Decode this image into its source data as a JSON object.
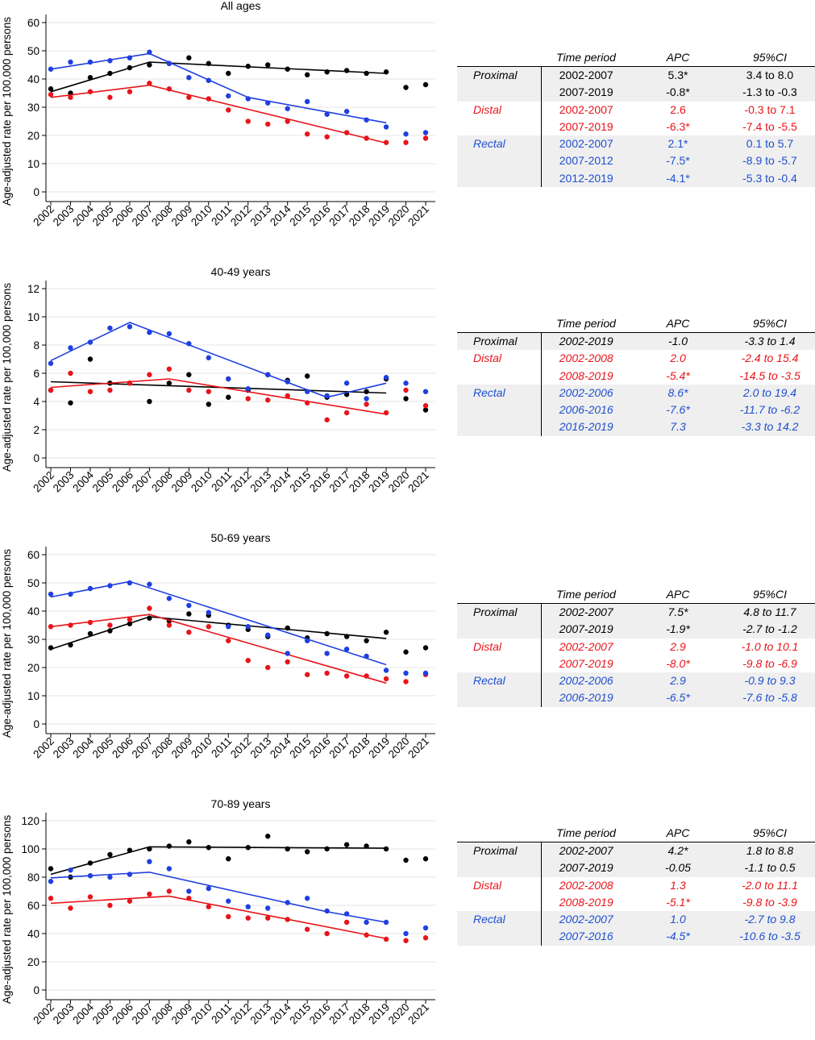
{
  "colors": {
    "proximal": "#000000",
    "distal": "#e8141a",
    "rectal": "#1f3fe0",
    "table_proximal": "#000000",
    "table_distal": "#e8141a",
    "table_rectal": "#1f4fd0",
    "shade": "#efefef",
    "grid": "#e6e6e6"
  },
  "ylabel": "Age-adjusted rate per 100,000 persons",
  "table_headers": {
    "time": "Time period",
    "apc": "APC",
    "ci": "95%CI"
  },
  "chart_data": [
    {
      "type": "scatter",
      "title": "All ages",
      "ylabel": "Age-adjusted rate per 100,000 persons",
      "x": [
        2002,
        2003,
        2004,
        2005,
        2006,
        2007,
        2008,
        2009,
        2010,
        2011,
        2012,
        2013,
        2014,
        2015,
        2016,
        2017,
        2018,
        2019,
        2020,
        2021
      ],
      "ylim": [
        0,
        60
      ],
      "yticks": [
        0,
        10,
        20,
        30,
        40,
        50,
        60
      ],
      "grid": true,
      "series": [
        {
          "name": "Proximal",
          "color": "#000000",
          "values": [
            36.5,
            35.0,
            40.5,
            42.0,
            44.0,
            45.0,
            45.5,
            47.5,
            45.5,
            42.0,
            44.5,
            45.0,
            43.5,
            41.5,
            42.5,
            43.0,
            42.0,
            42.5,
            37.0,
            38.0
          ],
          "fit": [
            [
              2002,
              35.5
            ],
            [
              2007,
              46.0
            ],
            [
              2019,
              42.0
            ]
          ]
        },
        {
          "name": "Distal",
          "color": "#e8141a",
          "values": [
            34.5,
            33.5,
            35.5,
            33.5,
            35.5,
            38.5,
            36.5,
            33.5,
            33.0,
            29.0,
            25.0,
            24.0,
            25.0,
            20.5,
            19.5,
            21.0,
            19.0,
            17.5,
            17.5,
            19.0
          ],
          "fit": [
            [
              2002,
              33.5
            ],
            [
              2007,
              37.8
            ],
            [
              2019,
              17.3
            ]
          ]
        },
        {
          "name": "Rectal",
          "color": "#1f3fe0",
          "values": [
            43.5,
            46.0,
            46.0,
            46.5,
            47.5,
            49.5,
            45.5,
            40.5,
            39.5,
            34.0,
            33.0,
            31.5,
            29.5,
            32.0,
            27.5,
            28.5,
            25.5,
            23.0,
            20.5,
            21.0
          ],
          "fit": [
            [
              2002,
              43.5
            ],
            [
              2007,
              49.0
            ],
            [
              2012,
              33.5
            ],
            [
              2019,
              24.5
            ]
          ]
        }
      ]
    },
    {
      "type": "scatter",
      "title": "40-49 years",
      "ylabel": "Age-adjusted rate per 100,000 persons",
      "x": [
        2002,
        2003,
        2004,
        2005,
        2006,
        2007,
        2008,
        2009,
        2010,
        2011,
        2012,
        2013,
        2014,
        2015,
        2016,
        2017,
        2018,
        2019,
        2020,
        2021
      ],
      "ylim": [
        0,
        12
      ],
      "yticks": [
        0,
        2,
        4,
        6,
        8,
        10,
        12
      ],
      "grid": true,
      "series": [
        {
          "name": "Proximal",
          "color": "#000000",
          "values": [
            4.8,
            3.9,
            7.0,
            5.3,
            5.3,
            4.0,
            5.3,
            5.9,
            3.8,
            4.3,
            4.8,
            5.9,
            5.5,
            5.8,
            4.3,
            4.5,
            4.7,
            5.6,
            4.2,
            3.4
          ],
          "fit": [
            [
              2002,
              5.4
            ],
            [
              2019,
              4.6
            ]
          ]
        },
        {
          "name": "Distal",
          "color": "#e8141a",
          "values": [
            4.8,
            6.0,
            4.7,
            4.8,
            5.3,
            5.9,
            6.3,
            4.8,
            4.7,
            5.6,
            4.2,
            4.1,
            4.4,
            3.9,
            2.7,
            3.2,
            3.8,
            3.2,
            4.8,
            3.7
          ],
          "fit": [
            [
              2002,
              5.0
            ],
            [
              2008,
              5.6
            ],
            [
              2019,
              3.1
            ]
          ]
        },
        {
          "name": "Rectal",
          "color": "#1f3fe0",
          "values": [
            6.7,
            7.8,
            8.2,
            9.2,
            9.3,
            8.9,
            8.8,
            8.1,
            7.1,
            5.6,
            4.9,
            5.9,
            5.4,
            4.7,
            4.4,
            5.3,
            4.2,
            5.7,
            5.3,
            4.7
          ],
          "fit": [
            [
              2002,
              6.9
            ],
            [
              2006,
              9.6
            ],
            [
              2016,
              4.3
            ],
            [
              2019,
              5.3
            ]
          ]
        }
      ]
    },
    {
      "type": "scatter",
      "title": "50-69 years",
      "ylabel": "Age-adjusted rate per 100,000 persons",
      "x": [
        2002,
        2003,
        2004,
        2005,
        2006,
        2007,
        2008,
        2009,
        2010,
        2011,
        2012,
        2013,
        2014,
        2015,
        2016,
        2017,
        2018,
        2019,
        2020,
        2021
      ],
      "ylim": [
        0,
        60
      ],
      "yticks": [
        0,
        10,
        20,
        30,
        40,
        50,
        60
      ],
      "grid": true,
      "series": [
        {
          "name": "Proximal",
          "color": "#000000",
          "values": [
            27.0,
            28.0,
            32.0,
            33.0,
            35.5,
            37.5,
            36.5,
            39.0,
            38.5,
            35.0,
            33.5,
            31.0,
            34.0,
            30.5,
            32.0,
            31.0,
            29.5,
            32.5,
            25.5,
            27.0
          ],
          "fit": [
            [
              2002,
              26.5
            ],
            [
              2007,
              38.0
            ],
            [
              2019,
              30.3
            ]
          ]
        },
        {
          "name": "Distal",
          "color": "#e8141a",
          "values": [
            34.5,
            35.0,
            36.0,
            35.0,
            37.0,
            41.0,
            35.0,
            32.5,
            34.5,
            29.5,
            22.5,
            20.0,
            22.0,
            17.5,
            18.0,
            17.0,
            17.0,
            16.0,
            15.0,
            17.5
          ],
          "fit": [
            [
              2002,
              34.5
            ],
            [
              2007,
              38.8
            ],
            [
              2019,
              14.5
            ]
          ]
        },
        {
          "name": "Rectal",
          "color": "#1f3fe0",
          "values": [
            46.0,
            46.0,
            48.0,
            49.0,
            50.0,
            49.5,
            44.5,
            42.0,
            39.5,
            34.5,
            34.5,
            31.5,
            25.0,
            29.5,
            25.0,
            26.5,
            24.0,
            19.0,
            18.0,
            18.0
          ],
          "fit": [
            [
              2002,
              45.0
            ],
            [
              2006,
              50.5
            ],
            [
              2019,
              21.0
            ]
          ]
        }
      ]
    },
    {
      "type": "scatter",
      "title": "70-89 years",
      "ylabel": "Age-adjusted rate per 100,000 persons",
      "x": [
        2002,
        2003,
        2004,
        2005,
        2006,
        2007,
        2008,
        2009,
        2010,
        2011,
        2012,
        2013,
        2014,
        2015,
        2016,
        2017,
        2018,
        2019,
        2020,
        2021
      ],
      "ylim": [
        0,
        120
      ],
      "yticks": [
        0,
        20,
        40,
        60,
        80,
        100,
        120
      ],
      "grid": true,
      "series": [
        {
          "name": "Proximal",
          "color": "#000000",
          "values": [
            86.0,
            80.0,
            90.0,
            96.0,
            99.0,
            100.0,
            102.0,
            105.0,
            101.0,
            93.0,
            101.0,
            109.0,
            100.0,
            98.0,
            100.0,
            103.0,
            102.0,
            100.0,
            92.0,
            93.0
          ],
          "fit": [
            [
              2002,
              82.0
            ],
            [
              2007,
              101.5
            ],
            [
              2019,
              100.5
            ]
          ]
        },
        {
          "name": "Distal",
          "color": "#e8141a",
          "values": [
            65.0,
            58.0,
            66.0,
            60.0,
            63.0,
            68.0,
            70.0,
            65.0,
            59.0,
            52.0,
            51.0,
            51.0,
            50.0,
            43.0,
            40.0,
            48.0,
            39.0,
            36.0,
            35.0,
            37.0
          ],
          "fit": [
            [
              2002,
              61.5
            ],
            [
              2008,
              66.5
            ],
            [
              2019,
              36.5
            ]
          ]
        },
        {
          "name": "Rectal",
          "color": "#1f3fe0",
          "values": [
            77.0,
            85.0,
            81.0,
            80.0,
            82.0,
            91.0,
            86.0,
            70.0,
            72.0,
            63.0,
            59.0,
            58.0,
            62.0,
            65.0,
            56.0,
            54.0,
            48.0,
            48.0,
            40.0,
            44.0
          ],
          "fit": [
            [
              2002,
              79.5
            ],
            [
              2007,
              83.5
            ],
            [
              2016,
              55.5
            ],
            [
              2019,
              48.0
            ]
          ]
        }
      ]
    }
  ],
  "tables": [
    {
      "italic_periods": false,
      "groups": [
        {
          "site": "Proximal",
          "color": "black",
          "shade": true,
          "rows": [
            {
              "period": "2002-2007",
              "apc": "5.3*",
              "ci": "3.4 to 8.0"
            },
            {
              "period": "2007-2019",
              "apc": "-0.8*",
              "ci": "-1.3 to -0.3"
            }
          ]
        },
        {
          "site": "Distal",
          "color": "red",
          "shade": false,
          "rows": [
            {
              "period": "2002-2007",
              "apc": "2.6",
              "ci": "-0.3 to 7.1"
            },
            {
              "period": "2007-2019",
              "apc": "-6.3*",
              "ci": "-7.4 to -5.5"
            }
          ]
        },
        {
          "site": "Rectal",
          "color": "blue",
          "shade": true,
          "rows": [
            {
              "period": "2002-2007",
              "apc": "2.1*",
              "ci": "0.1 to 5.7"
            },
            {
              "period": "2007-2012",
              "apc": "-7.5*",
              "ci": "-8.9 to -5.7"
            },
            {
              "period": "2012-2019",
              "apc": "-4.1*",
              "ci": "-5.3 to -0.4"
            }
          ]
        }
      ]
    },
    {
      "italic_periods": true,
      "groups": [
        {
          "site": "Proximal",
          "color": "black",
          "shade": true,
          "rows": [
            {
              "period": "2002-2019",
              "apc": "-1.0",
              "ci": "-3.3 to 1.4"
            }
          ]
        },
        {
          "site": "Distal",
          "color": "red",
          "shade": false,
          "rows": [
            {
              "period": "2002-2008",
              "apc": "2.0",
              "ci": "-2.4 to 15.4"
            },
            {
              "period": "2008-2019",
              "apc": "-5.4*",
              "ci": "-14.5 to -3.5"
            }
          ]
        },
        {
          "site": "Rectal",
          "color": "blue",
          "shade": true,
          "rows": [
            {
              "period": "2002-2006",
              "apc": "8.6*",
              "ci": "2.0 to 19.4"
            },
            {
              "period": "2006-2016",
              "apc": "-7.6*",
              "ci": "-11.7 to -6.2"
            },
            {
              "period": "2016-2019",
              "apc": "7.3",
              "ci": "-3.3 to 14.2"
            }
          ]
        }
      ]
    },
    {
      "italic_periods": true,
      "groups": [
        {
          "site": "Proximal",
          "color": "black",
          "shade": true,
          "rows": [
            {
              "period": "2002-2007",
              "apc": "7.5*",
              "ci": "4.8 to 11.7"
            },
            {
              "period": "2007-2019",
              "apc": "-1.9*",
              "ci": "-2.7 to -1.2"
            }
          ]
        },
        {
          "site": "Distal",
          "color": "red",
          "shade": false,
          "rows": [
            {
              "period": "2002-2007",
              "apc": "2.9",
              "ci": "-1.0 to 10.1"
            },
            {
              "period": "2007-2019",
              "apc": "-8.0*",
              "ci": "-9.8 to -6.9"
            }
          ]
        },
        {
          "site": "Rectal",
          "color": "blue",
          "shade": true,
          "rows": [
            {
              "period": "2002-2006",
              "apc": "2.9",
              "ci": "-0.9 to 9.3"
            },
            {
              "period": "2006-2019",
              "apc": "-6.5*",
              "ci": "-7.6 to -5.8"
            }
          ]
        }
      ]
    },
    {
      "italic_periods": true,
      "groups": [
        {
          "site": "Proximal",
          "color": "black",
          "shade": true,
          "rows": [
            {
              "period": "2002-2007",
              "apc": "4.2*",
              "ci": "1.8 to 8.8"
            },
            {
              "period": "2007-2019",
              "apc": "-0.05",
              "ci": "-1.1 to 0.5"
            }
          ]
        },
        {
          "site": "Distal",
          "color": "red",
          "shade": false,
          "rows": [
            {
              "period": "2002-2008",
              "apc": "1.3",
              "ci": "-2.0 to 11.1"
            },
            {
              "period": "2008-2019",
              "apc": "-5.1*",
              "ci": "-9.8 to -3.9"
            }
          ]
        },
        {
          "site": "Rectal",
          "color": "blue",
          "shade": true,
          "rows": [
            {
              "period": "2002-2007",
              "apc": "1.0",
              "ci": "-2.7 to 9.8"
            },
            {
              "period": "2007-2016",
              "apc": "-4.5*",
              "ci": "-10.6 to -3.5"
            }
          ]
        }
      ]
    }
  ]
}
